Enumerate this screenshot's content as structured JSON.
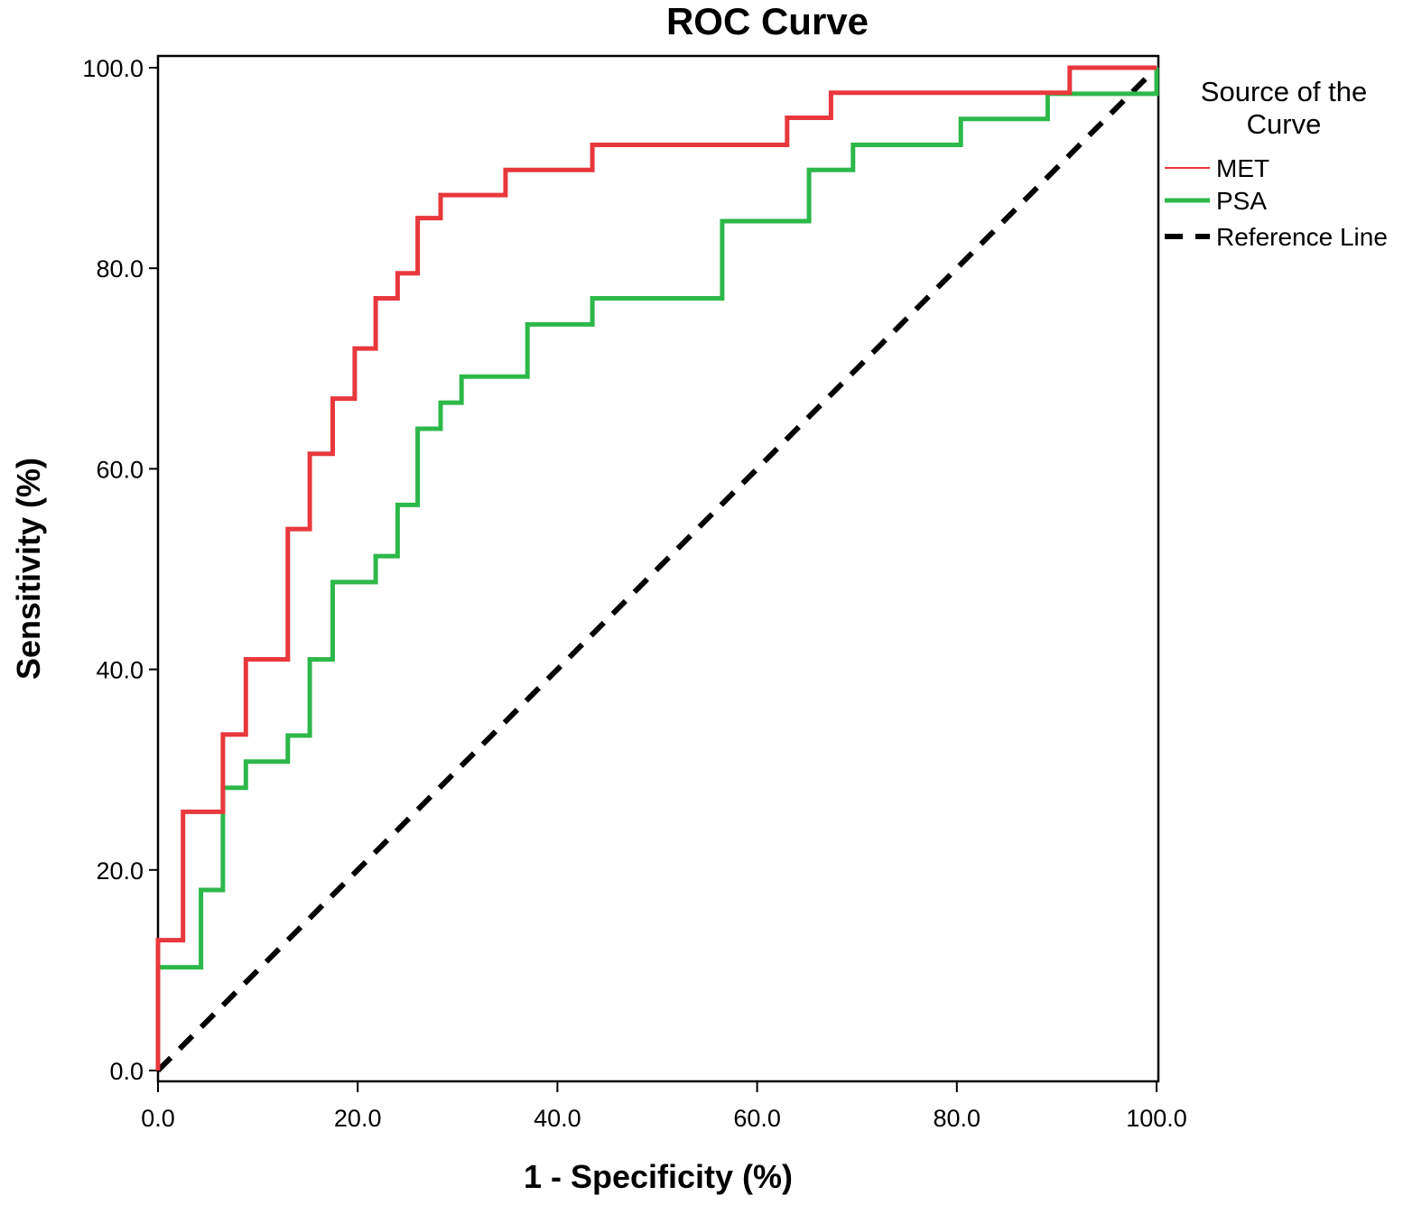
{
  "chart_data": {
    "type": "line",
    "title": "ROC Curve",
    "xlabel": "1 - Specificity (%)",
    "ylabel": "Sensitivity (%)",
    "xlim": [
      0,
      100
    ],
    "ylim": [
      0,
      100
    ],
    "xticks": [
      "0.0",
      "20.0",
      "40.0",
      "60.0",
      "80.0",
      "100.0"
    ],
    "yticks": [
      "0.0",
      "20.0",
      "40.0",
      "60.0",
      "80.0",
      "100.0"
    ],
    "grid": false,
    "legend": {
      "title_lines": [
        "Source of the",
        "Curve"
      ],
      "placement": "right",
      "entries": [
        "MET",
        "PSA",
        "Reference Line"
      ]
    },
    "series": [
      {
        "name": "MET",
        "color": "#e8383d",
        "style": "step",
        "points": [
          [
            0,
            0
          ],
          [
            0,
            13
          ],
          [
            2.5,
            13
          ],
          [
            2.5,
            25.8
          ],
          [
            6.5,
            25.8
          ],
          [
            6.5,
            33.5
          ],
          [
            8.8,
            33.5
          ],
          [
            8.8,
            41
          ],
          [
            13,
            41
          ],
          [
            13,
            54
          ],
          [
            15.2,
            54
          ],
          [
            15.2,
            61.5
          ],
          [
            17.5,
            61.5
          ],
          [
            17.5,
            67
          ],
          [
            19.7,
            67
          ],
          [
            19.7,
            72
          ],
          [
            21.8,
            72
          ],
          [
            21.8,
            77
          ],
          [
            24,
            77
          ],
          [
            24,
            79.5
          ],
          [
            26,
            79.5
          ],
          [
            26,
            85
          ],
          [
            28.3,
            85
          ],
          [
            28.3,
            87.3
          ],
          [
            34.8,
            87.3
          ],
          [
            34.8,
            89.8
          ],
          [
            43.5,
            89.8
          ],
          [
            43.5,
            92.3
          ],
          [
            63,
            92.3
          ],
          [
            63,
            95
          ],
          [
            67.4,
            95
          ],
          [
            67.4,
            97.5
          ],
          [
            91.3,
            97.5
          ],
          [
            91.3,
            100
          ],
          [
            100,
            100
          ]
        ]
      },
      {
        "name": "PSA",
        "color": "#2db84a",
        "style": "step",
        "points": [
          [
            0,
            0
          ],
          [
            0,
            10.3
          ],
          [
            4.3,
            10.3
          ],
          [
            4.3,
            18
          ],
          [
            6.5,
            18
          ],
          [
            6.5,
            28.2
          ],
          [
            8.8,
            28.2
          ],
          [
            8.8,
            30.8
          ],
          [
            13,
            30.8
          ],
          [
            13,
            33.4
          ],
          [
            15.2,
            33.4
          ],
          [
            15.2,
            41
          ],
          [
            17.5,
            41
          ],
          [
            17.5,
            48.7
          ],
          [
            21.8,
            48.7
          ],
          [
            21.8,
            51.3
          ],
          [
            24,
            51.3
          ],
          [
            24,
            56.4
          ],
          [
            26,
            56.4
          ],
          [
            26,
            64
          ],
          [
            28.3,
            64
          ],
          [
            28.3,
            66.6
          ],
          [
            30.4,
            66.6
          ],
          [
            30.4,
            69.2
          ],
          [
            37,
            69.2
          ],
          [
            37,
            74.4
          ],
          [
            43.5,
            74.4
          ],
          [
            43.5,
            77
          ],
          [
            56.5,
            77
          ],
          [
            56.5,
            84.7
          ],
          [
            65.2,
            84.7
          ],
          [
            65.2,
            89.8
          ],
          [
            69.6,
            89.8
          ],
          [
            69.6,
            92.3
          ],
          [
            80.4,
            92.3
          ],
          [
            80.4,
            94.9
          ],
          [
            89.1,
            94.9
          ],
          [
            89.1,
            97.4
          ],
          [
            100,
            97.4
          ],
          [
            100,
            100
          ]
        ]
      },
      {
        "name": "Reference Line",
        "color": "#000000",
        "style": "dashed",
        "points": [
          [
            0,
            0
          ],
          [
            100,
            100
          ]
        ]
      }
    ]
  }
}
